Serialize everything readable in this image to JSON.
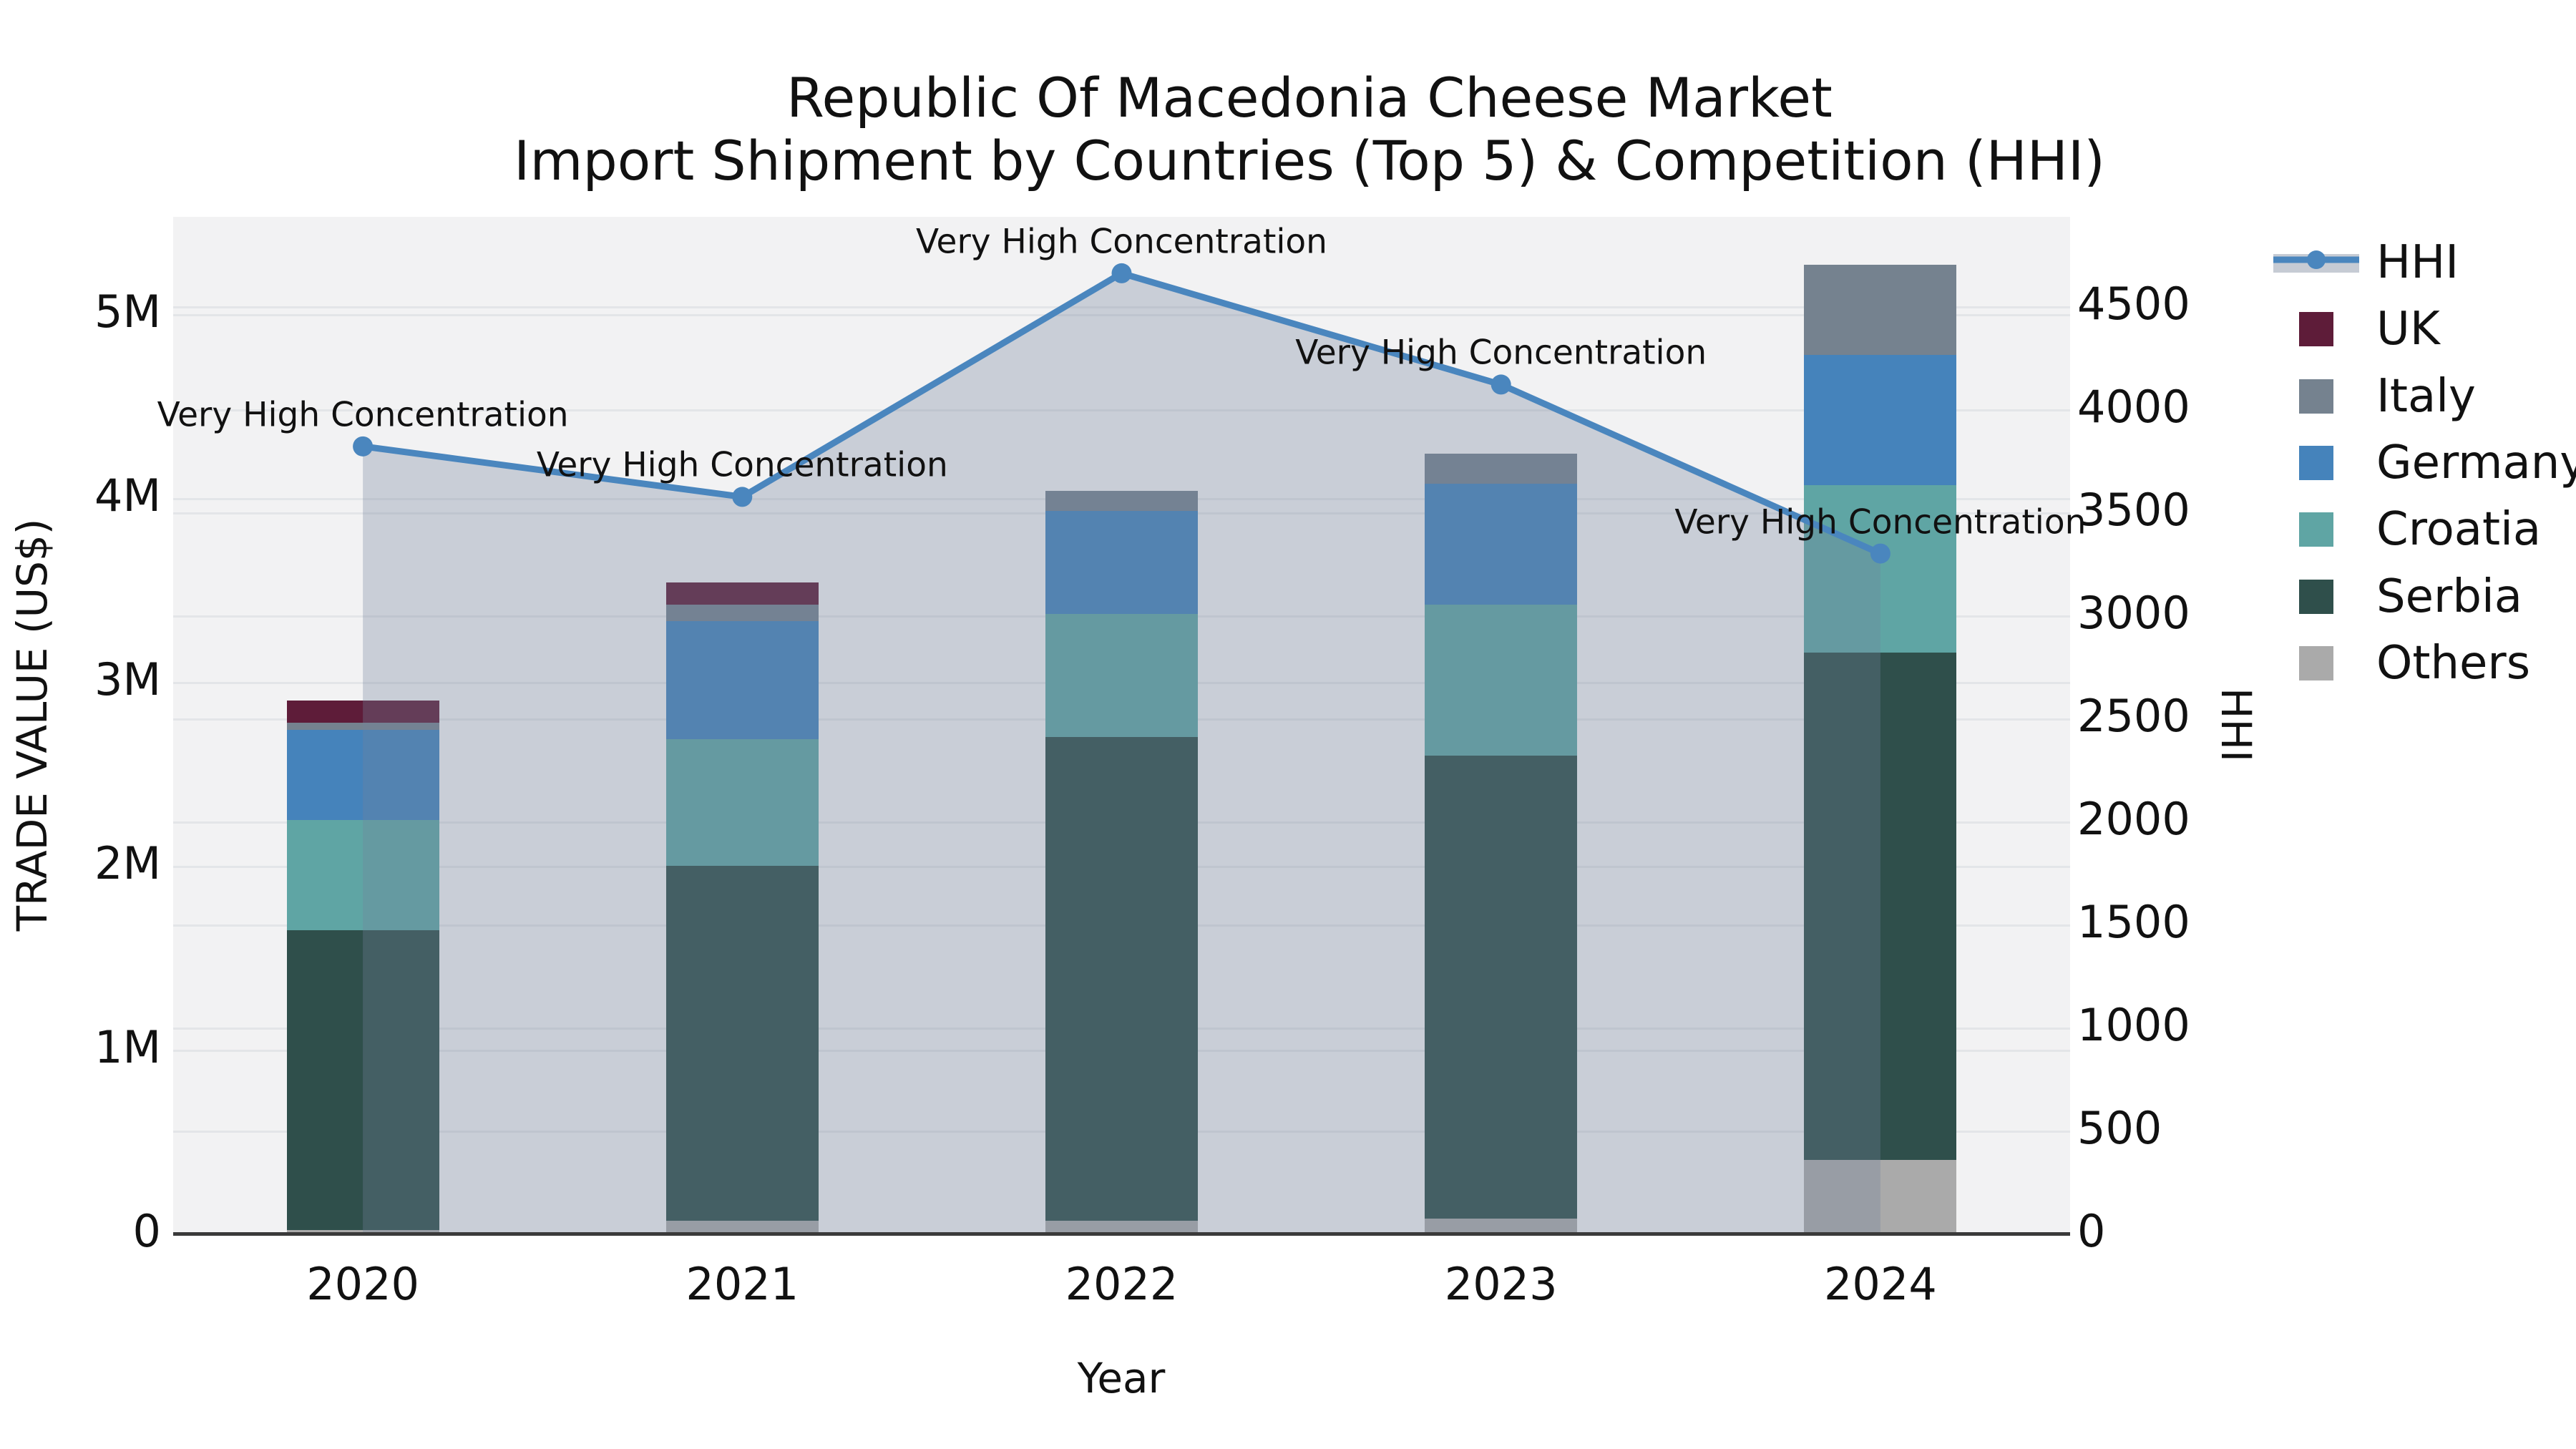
{
  "title": {
    "line1": "Republic Of Macedonia Cheese Market",
    "line2": "Import Shipment by Countries (Top 5) & Competition (HHI)"
  },
  "axes": {
    "x": {
      "label": "Year",
      "ticks": [
        "2020",
        "2021",
        "2022",
        "2023",
        "2024"
      ]
    },
    "y_left": {
      "label": "TRADE VALUE (US$)",
      "tick_labels": [
        "0",
        "1M",
        "2M",
        "3M",
        "4M",
        "5M"
      ],
      "tick_values": [
        0,
        1000000,
        2000000,
        3000000,
        4000000,
        5000000
      ],
      "max": 5530000
    },
    "y_right": {
      "label": "HHI",
      "tick_labels": [
        "0",
        "500",
        "1000",
        "1500",
        "2000",
        "2500",
        "3000",
        "3500",
        "4000",
        "4500"
      ],
      "tick_values": [
        0,
        500,
        1000,
        1500,
        2000,
        2500,
        3000,
        3500,
        4000,
        4500
      ],
      "max": 4934
    }
  },
  "legend": [
    {
      "label": "HHI",
      "type": "line",
      "color": "#4a86be"
    },
    {
      "label": "UK",
      "type": "square",
      "color": "#5e1c39"
    },
    {
      "label": "Italy",
      "type": "square",
      "color": "#75828f"
    },
    {
      "label": "Germany",
      "type": "square",
      "color": "#4583bb"
    },
    {
      "label": "Croatia",
      "type": "square",
      "color": "#5fa5a4"
    },
    {
      "label": "Serbia",
      "type": "square",
      "color": "#2f4f4b"
    },
    {
      "label": "Others",
      "type": "square",
      "color": "#aaaaaa"
    }
  ],
  "colors": {
    "plot_background": "#f2f2f3",
    "figure_background": "#ffffff",
    "gridline": "#e3e5e8",
    "axis_line": "#3a3a3a",
    "hhi_line": "#4a86be",
    "hhi_area_fill": "rgba(115,130,155,0.32)"
  },
  "chart_data": {
    "type": "bar",
    "subtype": "stacked-bars-with-hhi-line-area-overlay",
    "title": "Republic Of Macedonia Cheese Market — Import Shipment by Countries (Top 5) & Competition (HHI)",
    "xlabel": "Year",
    "ylabel": "TRADE VALUE (US$)",
    "ylabel_right": "HHI",
    "categories": [
      "2020",
      "2021",
      "2022",
      "2023",
      "2024"
    ],
    "unit": "US$",
    "stack_order_bottom_to_top": [
      "Others",
      "Serbia",
      "Croatia",
      "Germany",
      "Italy",
      "UK"
    ],
    "series": [
      {
        "name": "Others",
        "color": "#aaaaaa",
        "values": [
          20000,
          70000,
          70000,
          80000,
          400000
        ]
      },
      {
        "name": "Serbia",
        "color": "#2f4f4b",
        "values": [
          1630000,
          1930000,
          2630000,
          2520000,
          2760000
        ]
      },
      {
        "name": "Croatia",
        "color": "#5fa5a4",
        "values": [
          600000,
          690000,
          670000,
          820000,
          910000
        ]
      },
      {
        "name": "Germany",
        "color": "#4583bb",
        "values": [
          490000,
          640000,
          560000,
          660000,
          710000
        ]
      },
      {
        "name": "Italy",
        "color": "#75828f",
        "values": [
          40000,
          90000,
          110000,
          160000,
          490000
        ]
      },
      {
        "name": "UK",
        "color": "#5e1c39",
        "values": [
          120000,
          120000,
          0,
          0,
          0
        ]
      }
    ],
    "bar_totals": [
      2900000,
      3540000,
      4040000,
      4240000,
      5270000
    ],
    "line_series": {
      "name": "HHI",
      "axis": "right",
      "color": "#4a86be",
      "values": [
        3820,
        3575,
        4660,
        4120,
        3300
      ],
      "point_annotation": "Very High Concentration",
      "area_fill": "rgba(115,130,155,0.32)"
    },
    "ylim": [
      0,
      5530000
    ],
    "ylim_right": [
      0,
      4934
    ],
    "grid": true,
    "legend_position": "right"
  }
}
